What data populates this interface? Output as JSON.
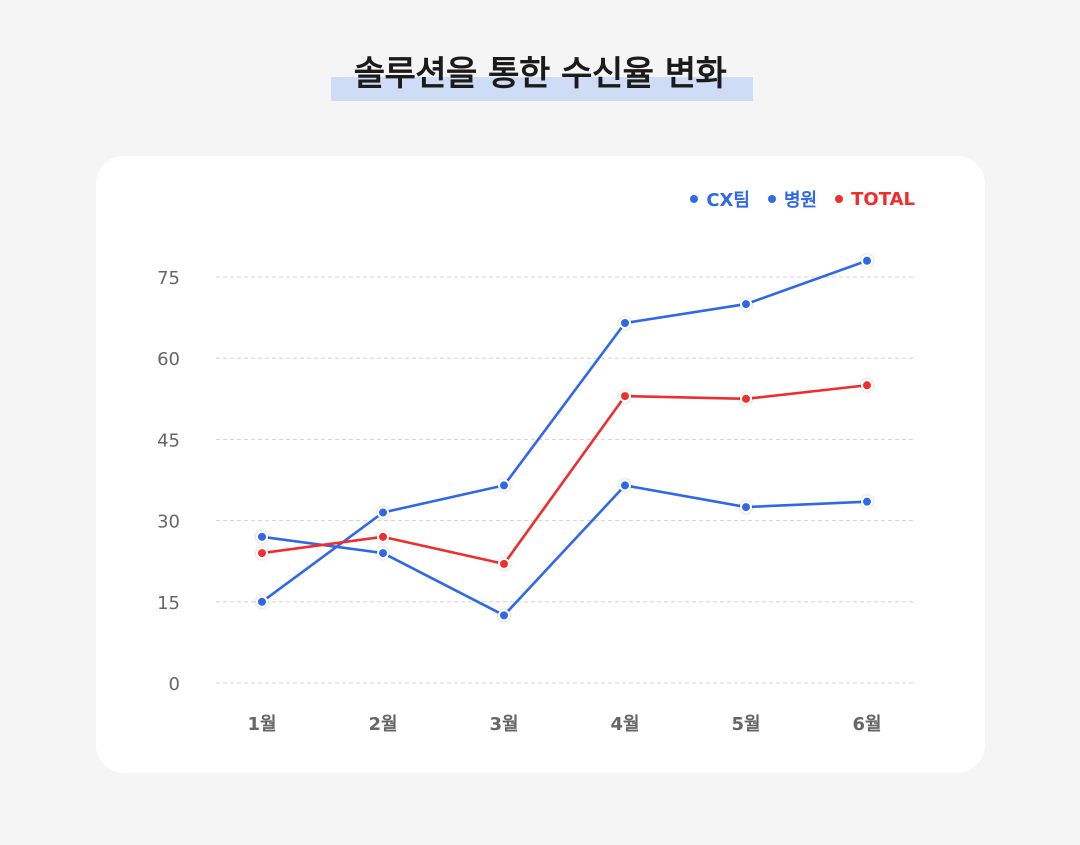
{
  "title": "솔루션을 통한 수신율 변화",
  "colors": {
    "background": "#f5f5f5",
    "card": "#ffffff",
    "highlight": "#cfdcf5",
    "blue": "#2f68e8",
    "red": "#f02d2d",
    "grid": "#d3d3d3",
    "axis_text": "#666666"
  },
  "chart_data": {
    "type": "line",
    "categories": [
      "1월",
      "2월",
      "3월",
      "4월",
      "5월",
      "6월"
    ],
    "ylim": [
      0,
      75
    ],
    "yticks": [
      "0",
      "15",
      "30",
      "45",
      "60",
      "75"
    ],
    "grid": true,
    "legend_position": "top-right",
    "series": [
      {
        "name": "CX팀",
        "color": "#2f68e8",
        "values": [
          15,
          31.5,
          36.5,
          66.5,
          70,
          78
        ]
      },
      {
        "name": "병원",
        "color": "#2f68e8",
        "values": [
          27,
          24,
          12.5,
          36.5,
          32.5,
          33.5
        ]
      },
      {
        "name": "TOTAL",
        "color": "#f02d2d",
        "values": [
          24,
          27,
          22,
          53,
          52.5,
          55
        ]
      }
    ]
  }
}
